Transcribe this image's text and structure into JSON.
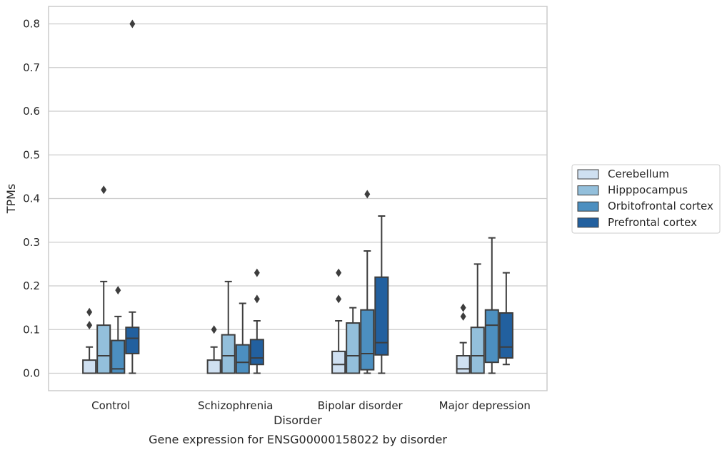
{
  "chart_data": {
    "type": "box",
    "title": "",
    "caption": "Gene expression for ENSG00000158022 by disorder",
    "xlabel": "Disorder",
    "ylabel": "TPMs",
    "ylim": [
      -0.04,
      0.84
    ],
    "yticks": [
      "0.0",
      "0.1",
      "0.2",
      "0.3",
      "0.4",
      "0.5",
      "0.6",
      "0.7",
      "0.8"
    ],
    "grid": true,
    "legend_position": "right",
    "categories": [
      "Control",
      "Schizophrenia",
      "Bipolar disorder",
      "Major depression"
    ],
    "series": [
      {
        "name": "Cerebellum",
        "color": "#cfe0f1",
        "boxes": [
          {
            "min": 0.0,
            "q1": 0.0,
            "median": 0.0,
            "q3": 0.03,
            "max": 0.06,
            "outliers": [
              0.11,
              0.14
            ]
          },
          {
            "min": 0.0,
            "q1": 0.0,
            "median": 0.0,
            "q3": 0.03,
            "max": 0.06,
            "outliers": [
              0.1
            ]
          },
          {
            "min": 0.0,
            "q1": 0.0,
            "median": 0.02,
            "q3": 0.05,
            "max": 0.12,
            "outliers": [
              0.17,
              0.23
            ]
          },
          {
            "min": 0.0,
            "q1": 0.0,
            "median": 0.01,
            "q3": 0.04,
            "max": 0.07,
            "outliers": [
              0.13,
              0.15
            ]
          }
        ]
      },
      {
        "name": "Hipppocampus",
        "color": "#93bfdb",
        "boxes": [
          {
            "min": 0.0,
            "q1": 0.0,
            "median": 0.04,
            "q3": 0.11,
            "max": 0.21,
            "outliers": [
              0.42
            ]
          },
          {
            "min": 0.0,
            "q1": 0.0,
            "median": 0.04,
            "q3": 0.088,
            "max": 0.21,
            "outliers": []
          },
          {
            "min": 0.0,
            "q1": 0.0,
            "median": 0.04,
            "q3": 0.115,
            "max": 0.15,
            "outliers": []
          },
          {
            "min": 0.0,
            "q1": 0.0,
            "median": 0.04,
            "q3": 0.105,
            "max": 0.25,
            "outliers": []
          }
        ]
      },
      {
        "name": "Orbitofrontal cortex",
        "color": "#4c8fc0",
        "boxes": [
          {
            "min": 0.0,
            "q1": 0.0,
            "median": 0.01,
            "q3": 0.075,
            "max": 0.13,
            "outliers": [
              0.19
            ]
          },
          {
            "min": 0.0,
            "q1": 0.0,
            "median": 0.025,
            "q3": 0.065,
            "max": 0.16,
            "outliers": []
          },
          {
            "min": 0.0,
            "q1": 0.008,
            "median": 0.045,
            "q3": 0.145,
            "max": 0.28,
            "outliers": [
              0.41
            ]
          },
          {
            "min": 0.0,
            "q1": 0.025,
            "median": 0.11,
            "q3": 0.145,
            "max": 0.31,
            "outliers": []
          }
        ]
      },
      {
        "name": "Prefrontal cortex",
        "color": "#22609f",
        "boxes": [
          {
            "min": 0.0,
            "q1": 0.045,
            "median": 0.08,
            "q3": 0.105,
            "max": 0.14,
            "outliers": [
              0.8
            ]
          },
          {
            "min": 0.0,
            "q1": 0.02,
            "median": 0.035,
            "q3": 0.077,
            "max": 0.12,
            "outliers": [
              0.17,
              0.23
            ]
          },
          {
            "min": 0.0,
            "q1": 0.042,
            "median": 0.07,
            "q3": 0.22,
            "max": 0.36,
            "outliers": []
          },
          {
            "min": 0.02,
            "q1": 0.035,
            "median": 0.06,
            "q3": 0.138,
            "max": 0.23,
            "outliers": []
          }
        ]
      }
    ],
    "colors": {
      "edge": "#3d3d3d",
      "grid": "#cccccc",
      "frame": "#cccccc",
      "text": "#262626"
    }
  }
}
